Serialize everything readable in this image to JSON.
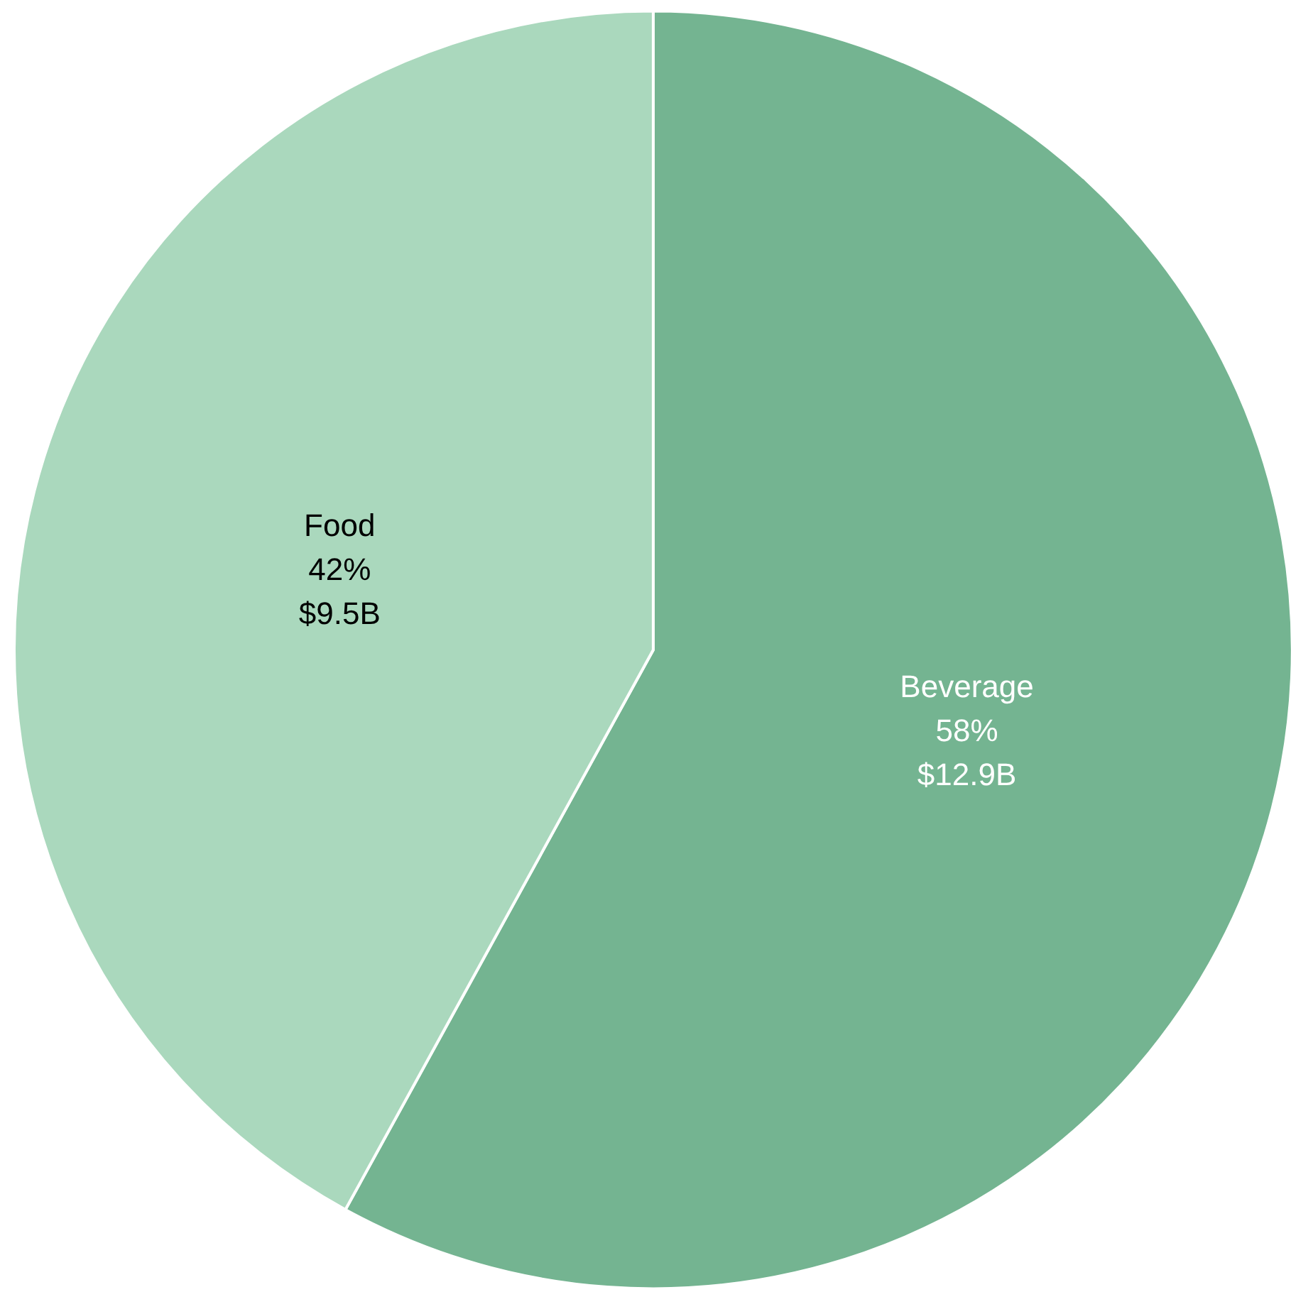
{
  "chart_data": {
    "type": "pie",
    "categories": [
      "Beverage",
      "Food"
    ],
    "values": [
      58,
      42
    ],
    "value_labels": [
      "58%\n$12.9B",
      "42%\n$9.5B"
    ],
    "colors": [
      "#74b491",
      "#aad8bd"
    ]
  }
}
